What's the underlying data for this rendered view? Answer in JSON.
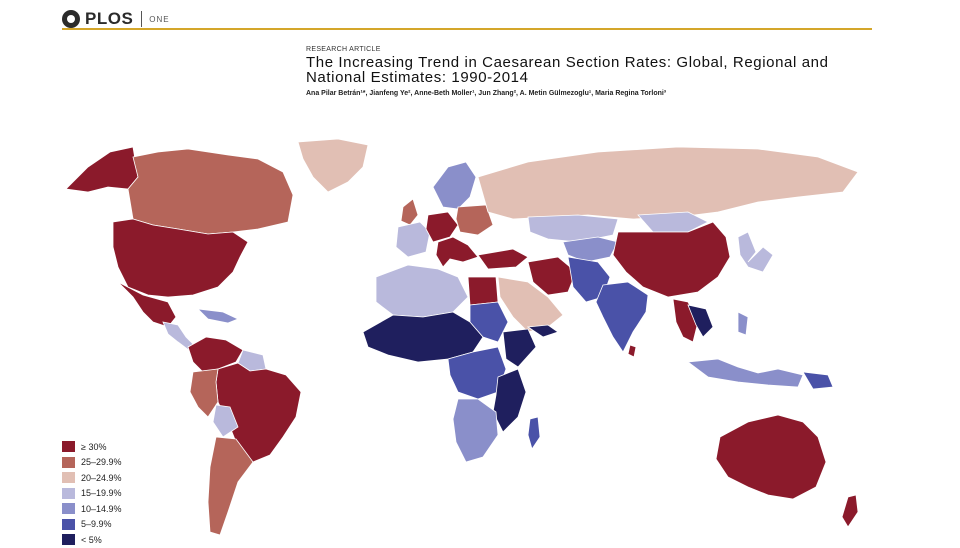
{
  "header": {
    "logo_text": "PLOS",
    "logo_sub": "ONE",
    "rule_color": "#d4a62a"
  },
  "article": {
    "kicker": "RESEARCH ARTICLE",
    "title": "The Increasing Trend in Caesarean Section Rates: Global, Regional and National Estimates: 1990-2014",
    "authors": "Ana Pilar Betrán¹*, Jianfeng Ye², Anne-Beth Moller¹, Jun Zhang², A. Metin Gülmezoglu¹, Maria Regina Torloni³"
  },
  "legend": {
    "items": [
      {
        "label": "≥ 30%",
        "color": "#8b1a2b"
      },
      {
        "label": "25–29.9%",
        "color": "#b5655a"
      },
      {
        "label": "20–24.9%",
        "color": "#e1bfb4"
      },
      {
        "label": "15–19.9%",
        "color": "#b9b9dc"
      },
      {
        "label": "10–14.9%",
        "color": "#8a8fca"
      },
      {
        "label": "5–9.9%",
        "color": "#4a52a8"
      },
      {
        "label": "< 5%",
        "color": "#1f1f5e"
      }
    ]
  },
  "map": {
    "no_data_color": "#ffffff",
    "border_color": "#ffffff"
  }
}
